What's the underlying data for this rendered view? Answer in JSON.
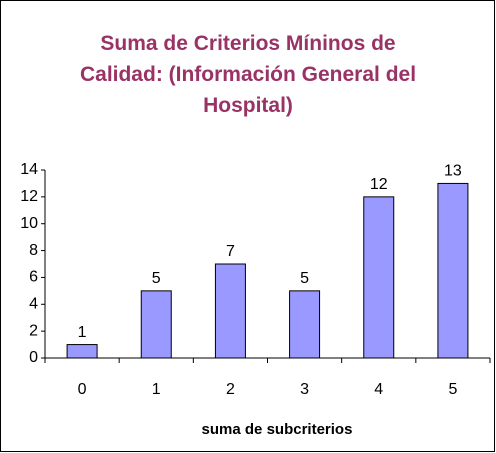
{
  "chart_data": {
    "type": "bar",
    "title": "Suma de Criterios Míninos de Calidad: (Información General del Hospital)",
    "x_label": "suma de subcriterios",
    "categories": [
      "0",
      "1",
      "2",
      "3",
      "4",
      "5"
    ],
    "values": [
      1,
      5,
      7,
      5,
      12,
      13
    ],
    "color": "#9999ff",
    "ylim": [
      0,
      14
    ],
    "yticks": [
      0,
      2,
      4,
      6,
      8,
      10,
      12,
      14
    ],
    "grid": false
  }
}
